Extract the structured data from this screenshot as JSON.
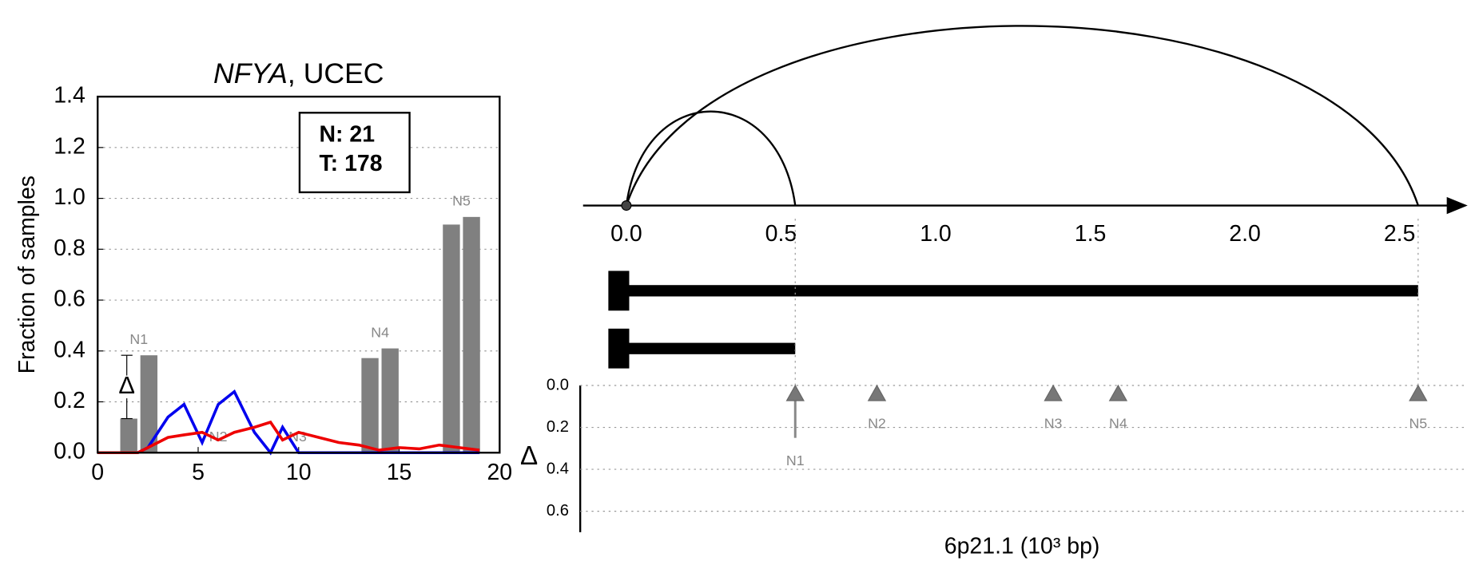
{
  "chart_data": [
    {
      "type": "bar",
      "title": {
        "gene": "NFYA",
        "rest": ", UCEC"
      },
      "ylabel": "Fraction of samples",
      "counts": [
        "N: 21",
        "T: 178"
      ],
      "xlim": [
        0,
        20
      ],
      "xticks": [
        0,
        5,
        10,
        15,
        20
      ],
      "ylim": [
        0,
        1.4
      ],
      "yticks": [
        {
          "value": 0,
          "label": "0.0"
        },
        0.2,
        0.4,
        0.6,
        0.8,
        {
          "value": 1,
          "label": "1.0"
        },
        1.2,
        1.4
      ],
      "grid": true,
      "bar_color": "#808080",
      "groups": [
        {
          "label": "N1",
          "x": 2.05,
          "values": [
            0.134,
            0.383
          ]
        },
        {
          "label": "N2",
          "x": 6.0,
          "values": []
        },
        {
          "label": "N3",
          "x": 9.95,
          "values": []
        },
        {
          "label": "N4",
          "x": 14.05,
          "values": [
            0.372,
            0.41
          ]
        },
        {
          "label": "N5",
          "x": 18.1,
          "values": [
            0.897,
            0.927
          ]
        }
      ],
      "delta_label": "Δ",
      "x": [
        0,
        1,
        2,
        2.5,
        3.5,
        4.3,
        5.2,
        6,
        6.8,
        7.8,
        8.6,
        9.2,
        10,
        11,
        12,
        13,
        14,
        15,
        16,
        17,
        18,
        19
      ],
      "series": [
        {
          "color": "#0000ee",
          "values": [
            0,
            0,
            0,
            0.02,
            0.14,
            0.19,
            0.04,
            0.19,
            0.24,
            0.08,
            0,
            0.1,
            0,
            0,
            0,
            0,
            0,
            0,
            0,
            0,
            0,
            0
          ]
        },
        {
          "color": "#ee0000",
          "values": [
            0,
            0,
            0,
            0.02,
            0.06,
            0.07,
            0.08,
            0.05,
            0.08,
            0.1,
            0.12,
            0.05,
            0.08,
            0.06,
            0.04,
            0.03,
            0.01,
            0.02,
            0.015,
            0.03,
            0.02,
            0.01
          ]
        }
      ]
    },
    {
      "type": "track",
      "xlabel": "6p21.1 (10³ bp)",
      "xlim": [
        -0.14,
        2.72
      ],
      "xticks": [
        {
          "value": 0,
          "label": "0.0"
        },
        0.5,
        {
          "value": 1,
          "label": "1.0"
        },
        1.5,
        {
          "value": 2,
          "label": "2.0"
        },
        2.5
      ],
      "arcs": [
        [
          0,
          0.546
        ],
        [
          0,
          2.56
        ]
      ],
      "transcripts": [
        [
          0,
          2.56
        ],
        [
          0,
          0.546
        ]
      ],
      "nodes": {
        "labels": [
          "N1",
          "N2",
          "N3",
          "N4",
          "N5"
        ],
        "x": [
          0.546,
          0.81,
          1.38,
          1.59,
          2.56
        ],
        "delta": [
          0.25,
          0,
          0,
          0,
          0
        ]
      },
      "ylabel": "Δ",
      "ylim": [
        0,
        0.7
      ],
      "yticks": [
        {
          "value": 0,
          "label": "0.0"
        },
        0.2,
        0.4,
        0.6
      ]
    }
  ]
}
